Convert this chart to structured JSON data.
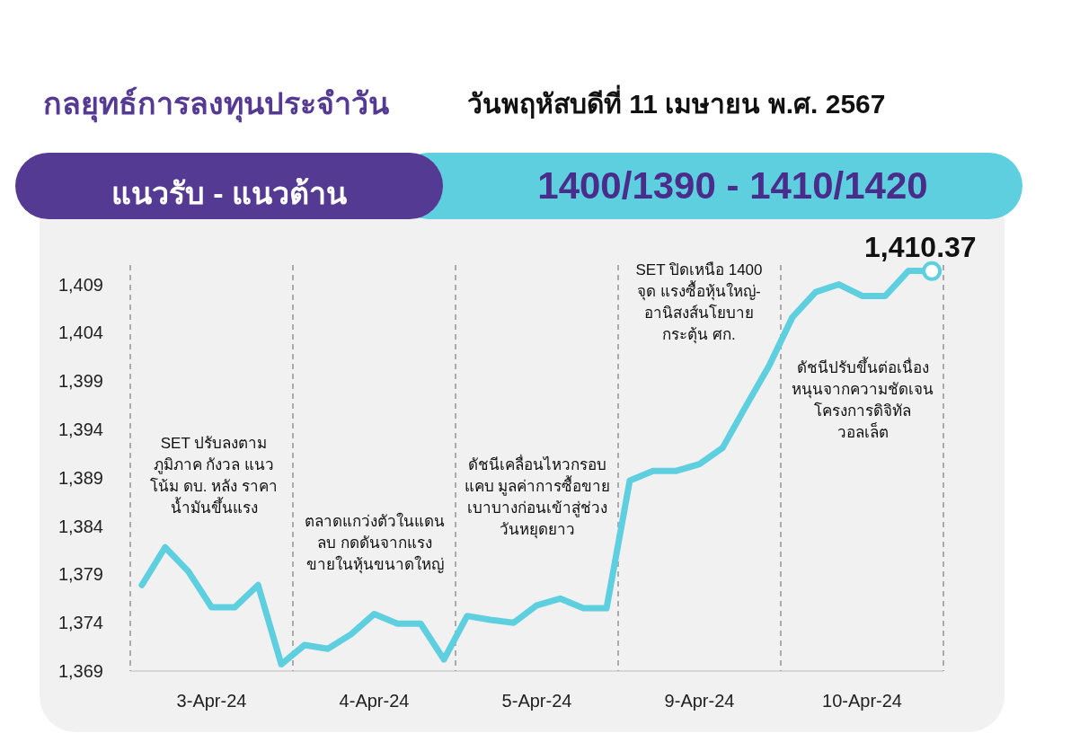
{
  "chart_data": {
    "type": "line",
    "title": "กลยุทธ์การลงทุนประจำวัน",
    "subtitle": "วันพฤหัสบดีที่ 11 เมษายน พ.ศ. 2567",
    "categories": [
      null,
      null,
      null,
      "3-Apr-24",
      null,
      null,
      null,
      null,
      null,
      null,
      "4-Apr-24",
      null,
      null,
      null,
      null,
      null,
      null,
      "5-Apr-24",
      null,
      null,
      null,
      null,
      null,
      null,
      "9-Apr-24",
      null,
      null,
      null,
      null,
      null,
      null,
      "10-Apr-24",
      null,
      null,
      null
    ],
    "series": [
      {
        "color": "#5dcfdf",
        "values": [
          1377.9,
          1381.8,
          1379.3,
          1375.6,
          1375.6,
          1377.9,
          1369.7,
          1371.7,
          1371.3,
          1372.8,
          1374.9,
          1373.9,
          1373.9,
          1370.2,
          1374.7,
          1374.3,
          1374.0,
          1375.8,
          1376.5,
          1375.5,
          1375.5,
          1388.7,
          1389.7,
          1389.7,
          1390.4,
          1392.1,
          1396.4,
          1400.6,
          1405.6,
          1408.2,
          1409.0,
          1407.8,
          1407.8,
          1410.4,
          1410.37
        ]
      }
    ],
    "ylim": [
      1369,
      1411
    ],
    "yticks": [
      {
        "value": 1369,
        "label": "1,369"
      },
      {
        "value": 1374,
        "label": "1,374"
      },
      {
        "value": 1379,
        "label": "1,379"
      },
      {
        "value": 1384,
        "label": "1,384"
      },
      {
        "value": 1389,
        "label": "1,389"
      },
      {
        "value": 1394,
        "label": "1,394"
      },
      {
        "value": 1399,
        "label": "1,399"
      },
      {
        "value": 1404,
        "label": "1,404"
      },
      {
        "value": 1409,
        "label": "1,409"
      }
    ],
    "annotations": [
      "แนวรับ - แนวต้าน",
      "1400/1390 - 1410/1420",
      "SET ปรับลงตาม ภูมิภาค กังวล แนวโน้ม ดบ. หลัง ราคาน้ำมันขึ้นแรง",
      "ตลาดแกว่งตัวในแดน ลบ กดดันจากแรง ขายในหุ้นขนาดใหญ่",
      "ดัชนีเคลื่อนไหวกรอบ แคบ มูลค่าการซื้อขาย เบาบางก่อนเข้าสู่ช่วง วันหยุดยาว",
      "SET ปิดเหนือ 1400 จุด แรงซื้อหุ้นใหญ่- อานิสงส์นโยบาย กระตุ้น ศก.",
      "ดัชนีปรับขึ้นต่อเนื่อง หนุนจากความชัดเจน โครงการดิจิทัลวอลเล็ต",
      {
        "text": "1,410.37",
        "y": 1410.37
      }
    ],
    "grid": false
  }
}
